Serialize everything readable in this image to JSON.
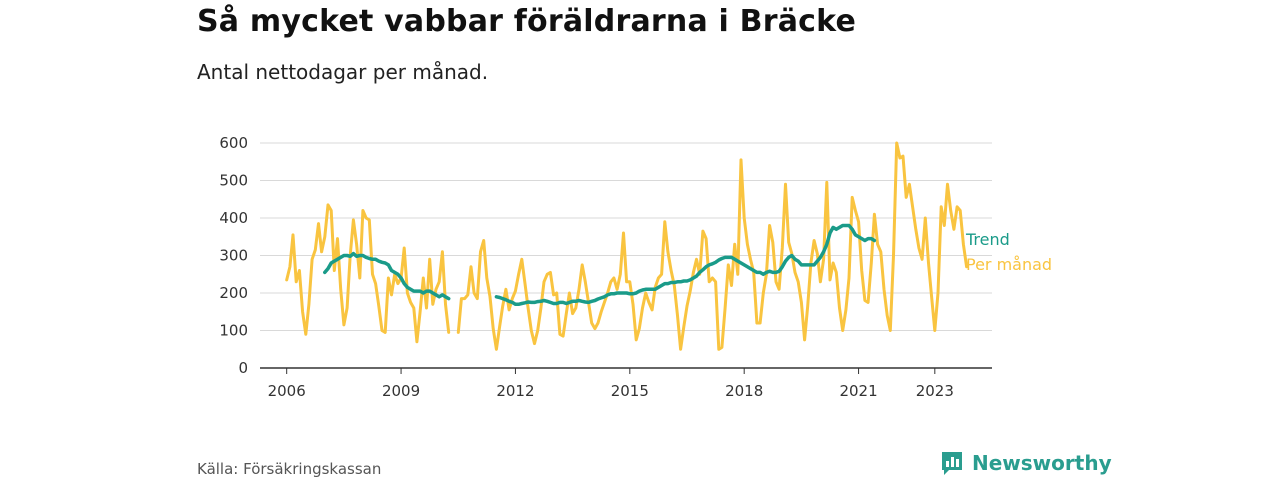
{
  "title": "Så mycket vabbar föräldrarna i Bräcke",
  "subtitle": "Antal nettodagar per månad.",
  "source": "Källa: Försäkringskassan",
  "brand": {
    "name": "Newsworthy",
    "icon": "bar-chart-bubble-icon"
  },
  "colors": {
    "monthly": "#f9c440",
    "trend": "#1a9b89",
    "grid": "#d9d9d9",
    "axis": "#333333"
  },
  "chart_data": {
    "type": "line",
    "title": "Så mycket vabbar föräldrarna i Bräcke",
    "ylabel": "",
    "xlabel": "",
    "ylim": [
      0,
      600
    ],
    "xlim": [
      2005.3,
      2024.5
    ],
    "yticks": [
      0,
      100,
      200,
      300,
      400,
      500,
      600
    ],
    "xticks": [
      2006,
      2009,
      2012,
      2015,
      2018,
      2021,
      2023
    ],
    "grid": true,
    "series": [
      {
        "name": "Per månad",
        "color": "#f9c440",
        "segments": [
          {
            "start": 2006.0,
            "values": [
              235,
              270,
              355,
              230,
              260,
              150,
              90,
              170,
              290,
              315,
              385,
              310,
              350,
              435,
              420,
              260,
              345,
              210,
              115,
              160,
              300,
              395,
              330,
              240,
              420,
              400,
              395,
              250,
              225,
              165,
              100,
              95,
              240,
              195,
              250,
              225,
              240,
              320,
              200,
              175,
              160,
              70,
              150,
              240,
              160,
              290,
              170,
              210,
              230,
              310,
              170,
              95
            ]
          },
          {
            "start": 2010.5,
            "values": [
              95,
              185,
              185,
              195,
              270,
              200,
              185,
              310,
              340,
              240,
              190,
              105,
              50,
              110,
              165,
              210,
              155,
              185,
              205,
              250,
              290,
              225,
              160,
              100,
              65,
              100,
              160,
              230,
              250,
              255,
              195,
              200,
              90,
              85,
              145,
              200,
              145,
              160,
              210,
              275,
              230,
              175,
              120,
              105,
              120,
              150,
              175,
              200,
              230,
              240,
              210,
              250,
              360,
              230,
              230,
              170,
              75,
              105,
              160,
              200,
              175,
              155,
              215,
              240,
              250,
              390,
              310,
              260,
              220,
              140,
              50,
              110,
              165,
              205,
              255,
              290,
              250,
              365,
              345,
              230,
              240,
              230,
              50,
              55,
              160,
              275,
              220,
              330,
              250,
              555,
              400,
              330,
              290,
              255,
              120,
              120,
              200,
              250,
              380,
              335,
              230,
              210,
              320,
              490,
              335,
              305,
              255,
              230,
              175,
              75,
              165,
              280,
              340,
              305,
              230,
              290,
              495,
              235,
              280,
              255,
              160,
              100,
              155,
              240,
              455,
              420,
              390,
              260,
              180,
              175,
              280,
              410,
              330,
              310,
              210,
              140,
              100,
              300,
              600,
              560,
              565,
              455,
              490,
              430,
              370,
              320,
              290,
              400,
              280,
              190,
              100,
              200,
              430,
              380,
              490,
              420,
              370,
              430,
              420,
              330,
              270
            ]
          }
        ]
      },
      {
        "name": "Trend",
        "color": "#1a9b89",
        "segments": [
          {
            "start": 2007.0,
            "values": [
              255,
              265,
              280,
              285,
              290,
              295,
              300,
              300,
              298,
              305,
              298,
              300,
              300,
              295,
              292,
              290,
              290,
              285,
              282,
              280,
              275,
              260,
              255,
              250,
              240,
              225,
              215,
              210,
              205,
              205,
              205,
              200,
              205,
              205,
              200,
              195,
              190,
              195,
              190,
              185
            ]
          },
          {
            "start": 2011.5,
            "values": [
              190,
              188,
              185,
              182,
              178,
              175,
              170,
              170,
              172,
              174,
              176,
              175,
              175,
              177,
              178,
              180,
              178,
              175,
              172,
              172,
              175,
              175,
              172,
              175,
              178,
              178,
              180,
              178,
              176,
              175,
              178,
              180,
              184,
              187,
              190,
              195,
              198,
              198,
              200,
              200,
              200,
              200,
              198,
              198,
              200,
              205,
              208,
              210,
              210,
              210,
              210,
              215,
              220,
              225,
              225,
              228,
              228,
              230,
              230,
              232,
              232,
              235,
              240,
              245,
              255,
              262,
              270,
              275,
              278,
              282,
              288,
              292,
              295,
              295,
              295,
              290,
              285,
              280,
              275,
              270,
              265,
              260,
              255,
              255,
              250,
              255,
              258,
              255,
              255,
              258,
              270,
              285,
              295,
              300,
              290,
              285,
              275,
              275,
              275,
              275,
              275,
              285,
              295,
              310,
              330,
              360,
              375,
              370,
              375,
              380,
              380,
              380,
              370,
              355,
              350,
              345,
              340,
              345,
              345,
              340
            ]
          }
        ]
      }
    ],
    "annotations": {
      "trend_label": "Trend",
      "monthly_label": "Per månad"
    }
  }
}
